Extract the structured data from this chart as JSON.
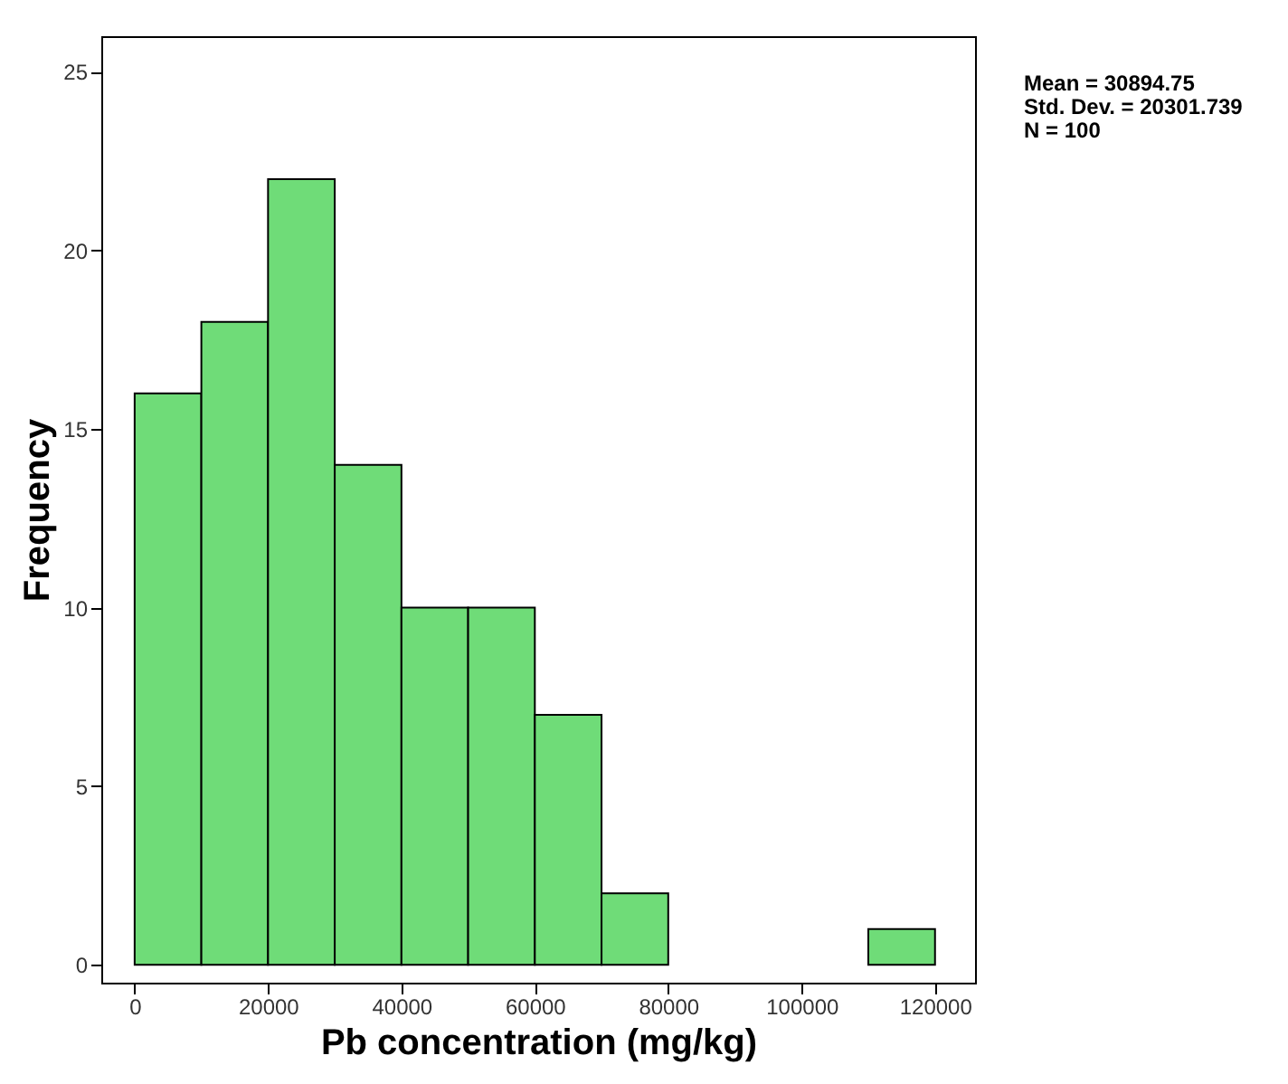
{
  "chart_data": {
    "type": "histogram",
    "xlabel": "Pb concentration (mg/kg)",
    "ylabel": "Frequency",
    "bins": [
      0,
      10000,
      20000,
      30000,
      40000,
      50000,
      60000,
      70000,
      80000,
      90000,
      100000,
      110000,
      120000
    ],
    "values": [
      16,
      18,
      22,
      14,
      10,
      10,
      7,
      2,
      0,
      0,
      0,
      1
    ],
    "color": "#6fdc78",
    "xlim": [
      -5000,
      126000
    ],
    "xticks": [
      0,
      20000,
      40000,
      60000,
      80000,
      100000,
      120000
    ],
    "ylim": [
      -0.5,
      26
    ],
    "yticks": [
      0,
      5,
      10,
      15,
      20,
      25
    ],
    "grid": false,
    "annotations": [
      "Mean = 30894.75",
      "Std. Dev. = 20301.739",
      "N = 100"
    ]
  }
}
